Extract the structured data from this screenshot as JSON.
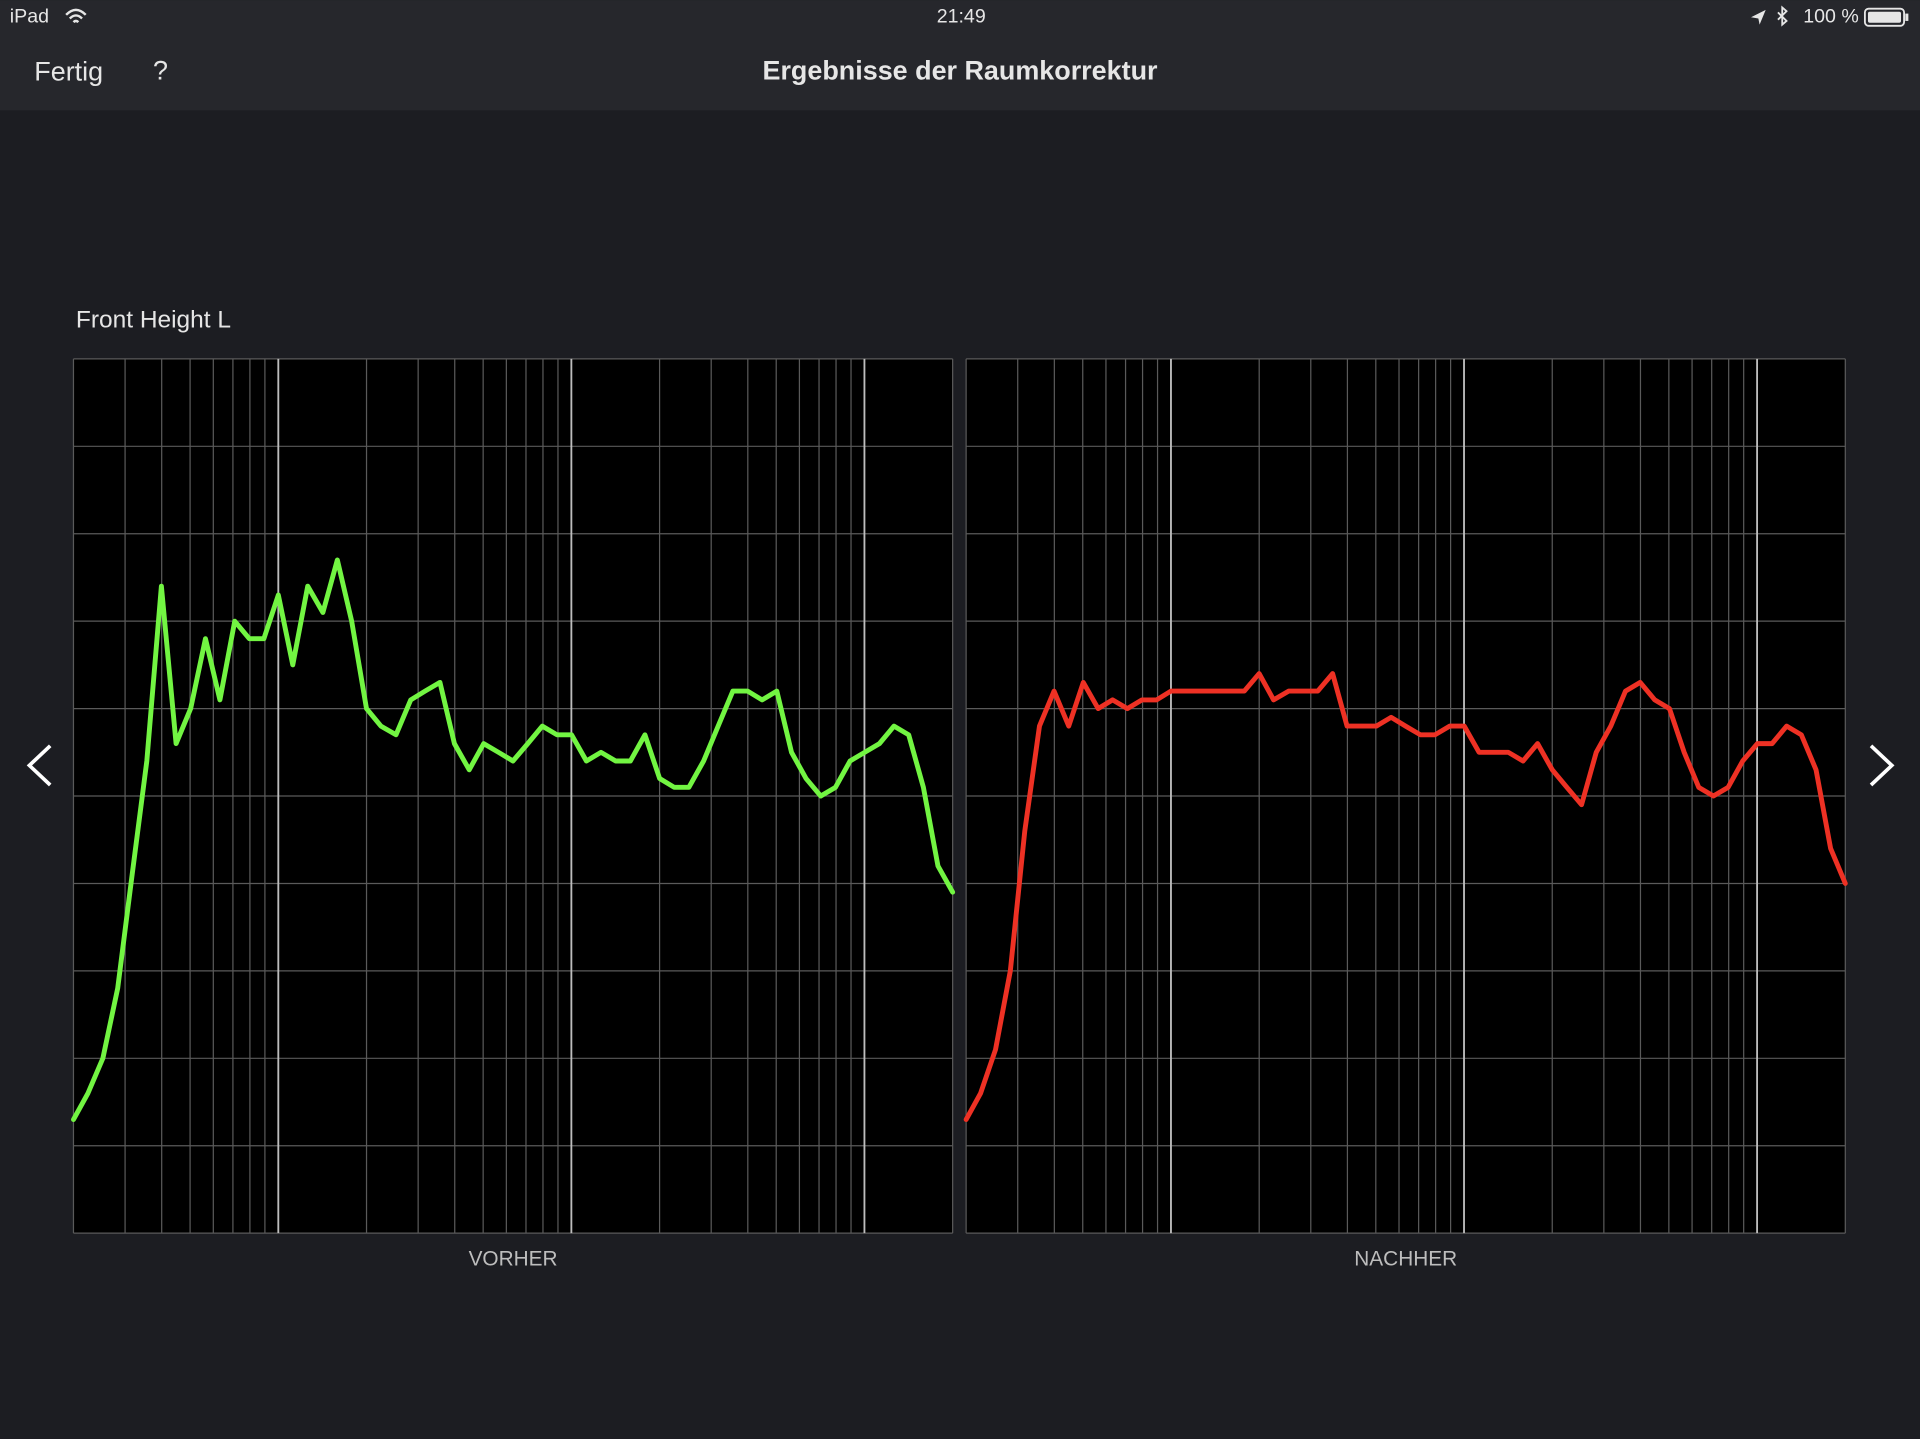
{
  "status_bar": {
    "device": "iPad",
    "time": "21:49",
    "battery": "100 %"
  },
  "nav": {
    "done": "Fertig",
    "help": "?",
    "title": "Ergebnisse der Raumkorrektur"
  },
  "section_title": "Front Height L",
  "chart_data": [
    {
      "type": "line",
      "xlabel": "VORHER",
      "color": "#72f542",
      "log_x": true,
      "grid": true,
      "xlim": [
        20,
        20000
      ],
      "ylim": [
        0,
        10
      ],
      "xticks": [
        20,
        30,
        40,
        50,
        60,
        70,
        80,
        90,
        100,
        200,
        300,
        400,
        500,
        600,
        700,
        800,
        900,
        1000,
        2000,
        3000,
        4000,
        5000,
        6000,
        7000,
        8000,
        9000,
        10000,
        20000
      ],
      "major_xticks": [
        100,
        1000,
        10000
      ],
      "yticks": [
        0,
        1,
        2,
        3,
        4,
        5,
        6,
        7,
        8,
        9,
        10
      ],
      "x": [
        20,
        22.4,
        25.2,
        28.3,
        31.7,
        35.6,
        39.9,
        44.8,
        50.2,
        56.4,
        63.2,
        71,
        79.6,
        89.3,
        100,
        112,
        126,
        142,
        159,
        178,
        200,
        224,
        252,
        283,
        317,
        356,
        399,
        448,
        502,
        564,
        632,
        710,
        796,
        893,
        1002,
        1125,
        1262,
        1416,
        1589,
        1783,
        2000,
        2244,
        2518,
        2825,
        3170,
        3557,
        3991,
        4477,
        5024,
        5637,
        6325,
        7096,
        7962,
        8934,
        10024,
        11247,
        12619,
        14159,
        15887,
        17825,
        20000
      ],
      "values": [
        1.3,
        1.6,
        2.0,
        2.8,
        4.1,
        5.4,
        7.4,
        5.6,
        6.0,
        6.8,
        6.1,
        7.0,
        6.8,
        6.8,
        7.3,
        6.5,
        7.4,
        7.1,
        7.7,
        7.0,
        6.0,
        5.8,
        5.7,
        6.1,
        6.2,
        6.3,
        5.6,
        5.3,
        5.6,
        5.5,
        5.4,
        5.6,
        5.8,
        5.7,
        5.7,
        5.4,
        5.5,
        5.4,
        5.4,
        5.7,
        5.2,
        5.1,
        5.1,
        5.4,
        5.8,
        6.2,
        6.2,
        6.1,
        6.2,
        5.5,
        5.2,
        5.0,
        5.1,
        5.4,
        5.5,
        5.6,
        5.8,
        5.7,
        5.1,
        4.2,
        3.9
      ]
    },
    {
      "type": "line",
      "xlabel": "NACHHER",
      "color": "#ee3124",
      "log_x": true,
      "grid": true,
      "xlim": [
        20,
        20000
      ],
      "ylim": [
        0,
        10
      ],
      "xticks": [
        20,
        30,
        40,
        50,
        60,
        70,
        80,
        90,
        100,
        200,
        300,
        400,
        500,
        600,
        700,
        800,
        900,
        1000,
        2000,
        3000,
        4000,
        5000,
        6000,
        7000,
        8000,
        9000,
        10000,
        20000
      ],
      "major_xticks": [
        100,
        1000,
        10000
      ],
      "yticks": [
        0,
        1,
        2,
        3,
        4,
        5,
        6,
        7,
        8,
        9,
        10
      ],
      "x": [
        20,
        22.4,
        25.2,
        28.3,
        31.7,
        35.6,
        39.9,
        44.8,
        50.2,
        56.4,
        63.2,
        71,
        79.6,
        89.3,
        100,
        112,
        126,
        142,
        159,
        178,
        200,
        224,
        252,
        283,
        317,
        356,
        399,
        448,
        502,
        564,
        632,
        710,
        796,
        893,
        1002,
        1125,
        1262,
        1416,
        1589,
        1783,
        2000,
        2244,
        2518,
        2825,
        3170,
        3557,
        3991,
        4477,
        5024,
        5637,
        6325,
        7096,
        7962,
        8934,
        10024,
        11247,
        12619,
        14159,
        15887,
        17825,
        20000
      ],
      "values": [
        1.3,
        1.6,
        2.1,
        3.0,
        4.6,
        5.8,
        6.2,
        5.8,
        6.3,
        6.0,
        6.1,
        6.0,
        6.1,
        6.1,
        6.2,
        6.2,
        6.2,
        6.2,
        6.2,
        6.2,
        6.4,
        6.1,
        6.2,
        6.2,
        6.2,
        6.4,
        5.8,
        5.8,
        5.8,
        5.9,
        5.8,
        5.7,
        5.7,
        5.8,
        5.8,
        5.5,
        5.5,
        5.5,
        5.4,
        5.6,
        5.3,
        5.1,
        4.9,
        5.5,
        5.8,
        6.2,
        6.3,
        6.1,
        6.0,
        5.5,
        5.1,
        5.0,
        5.1,
        5.4,
        5.6,
        5.6,
        5.8,
        5.7,
        5.3,
        4.4,
        4.0
      ]
    }
  ]
}
